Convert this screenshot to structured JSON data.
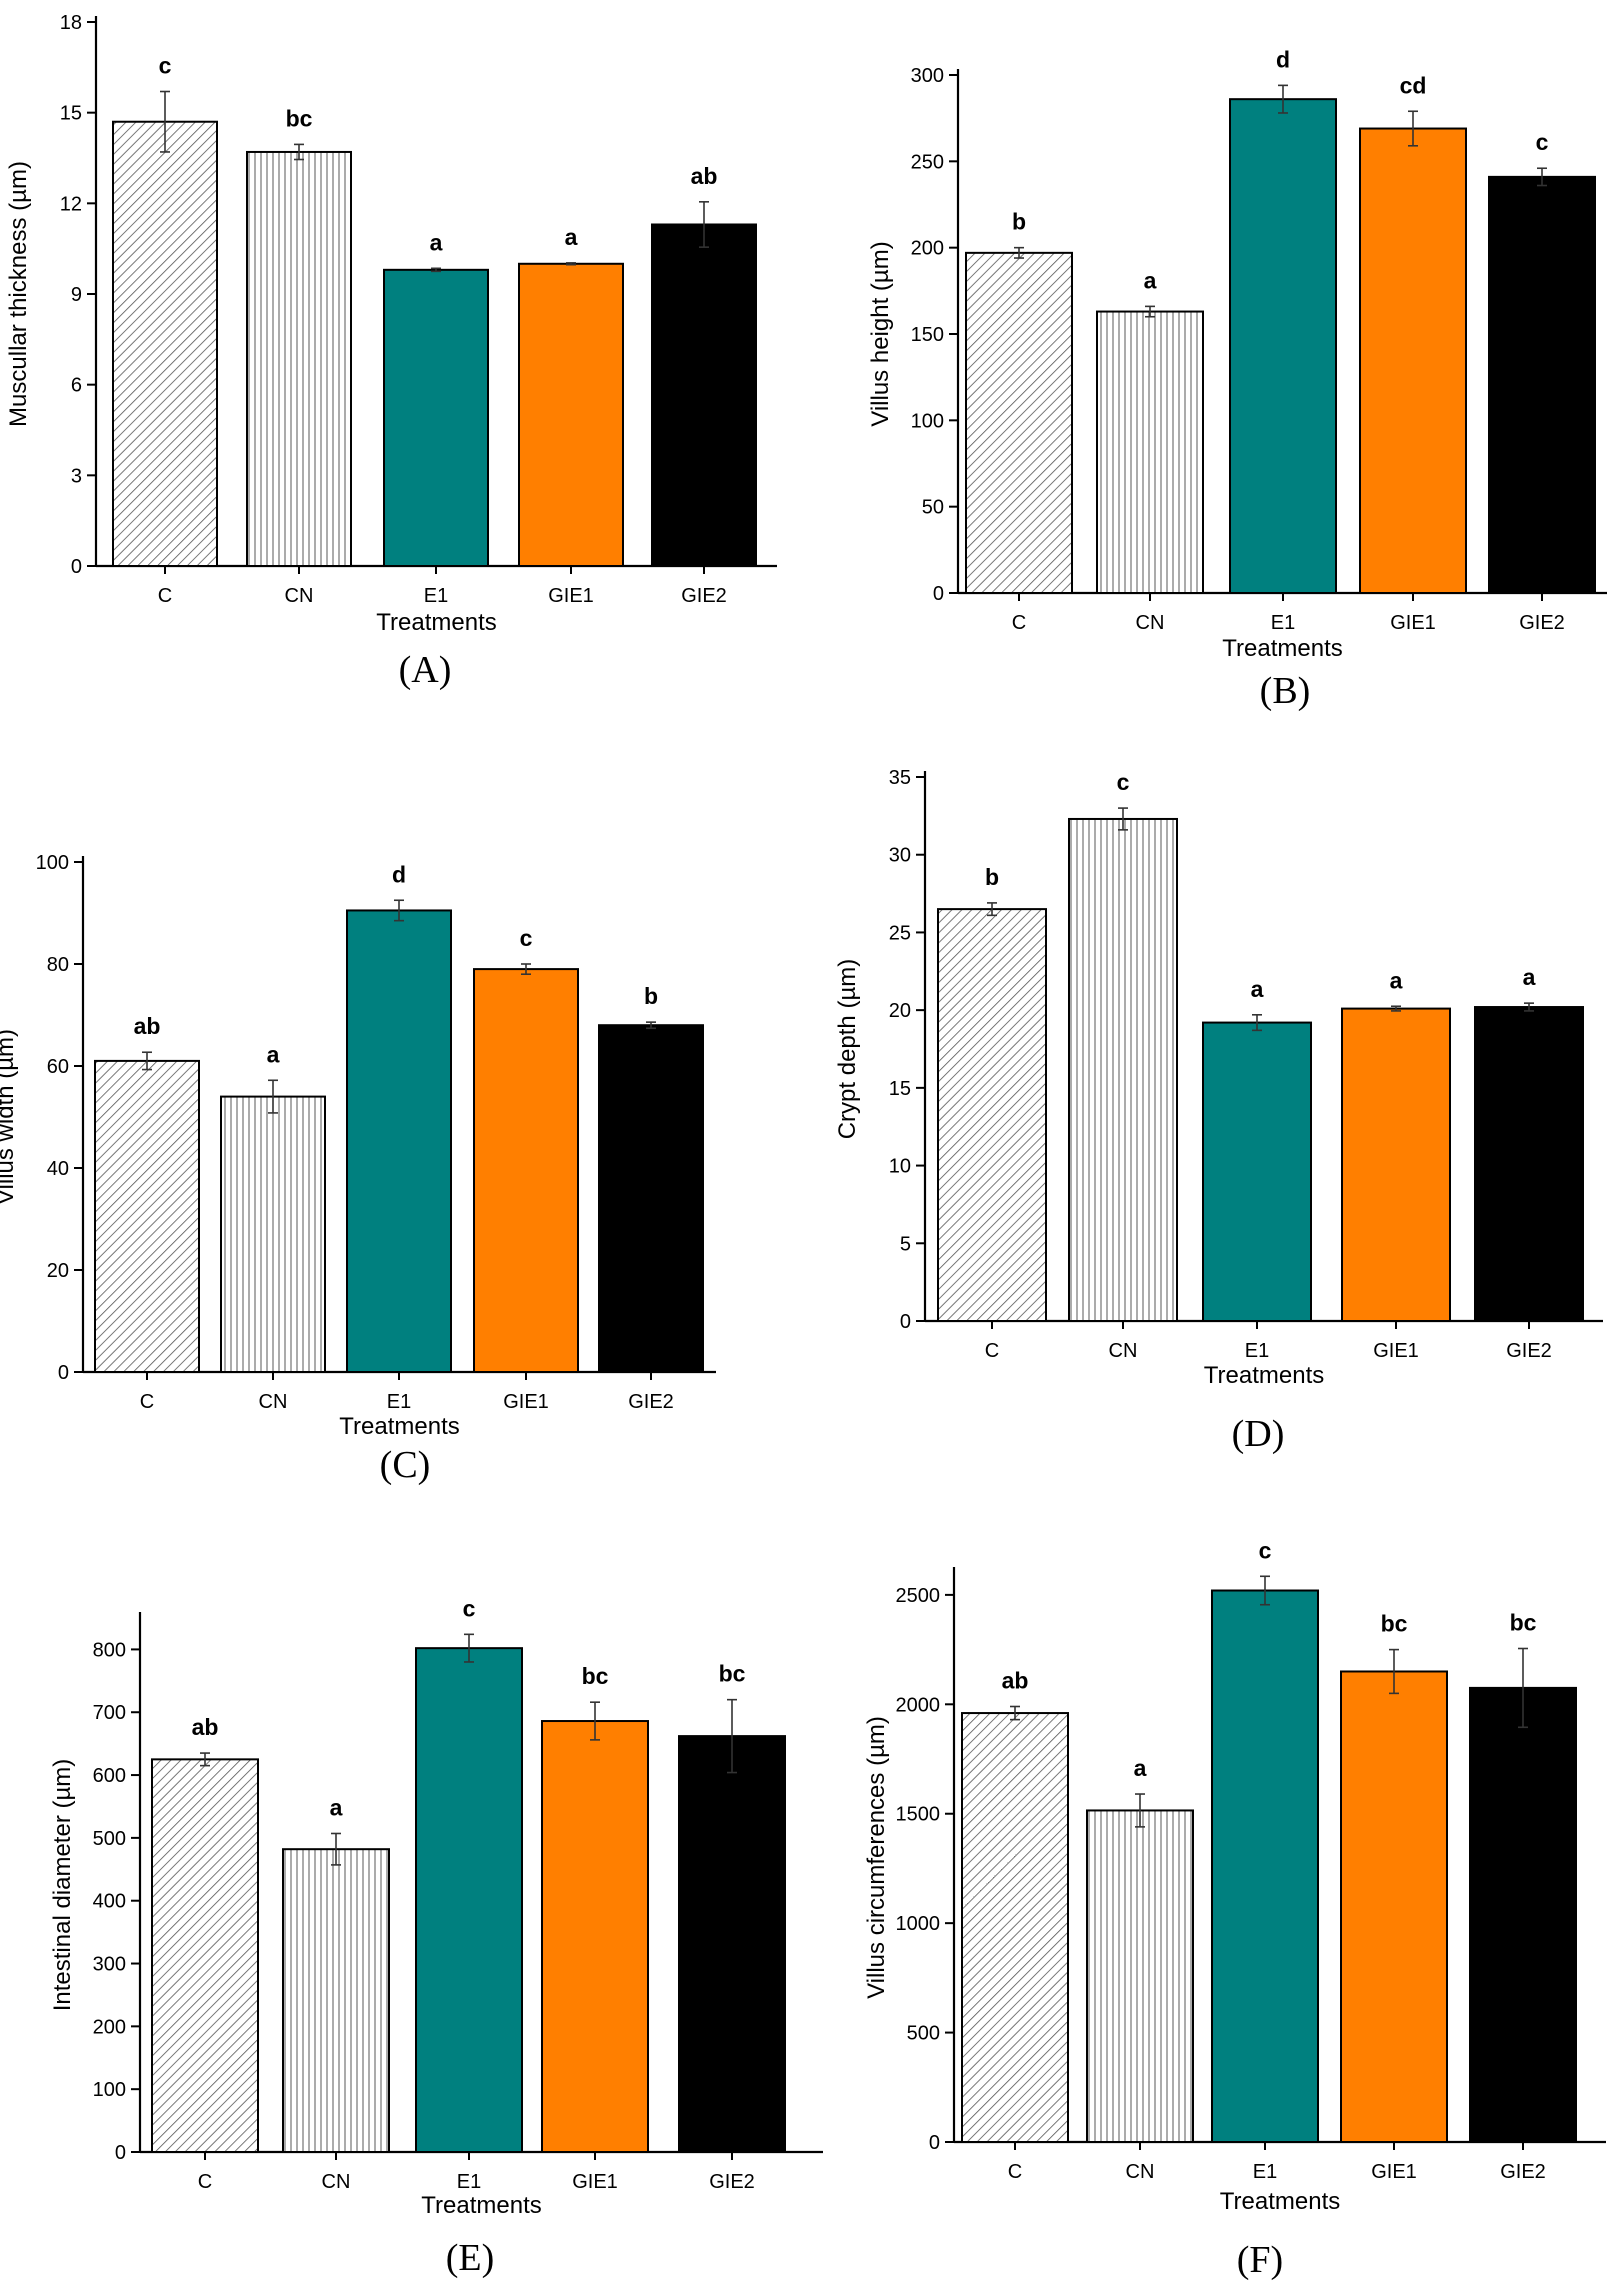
{
  "colors": {
    "E1": "#00807f",
    "GIE1": "#ff7f00",
    "GIE2": "#000000",
    "CN": "#ffffff",
    "C": "#ffffff",
    "pattern_stroke": "#555555"
  },
  "chart_data": [
    {
      "type": "bar",
      "panel": "(A)",
      "xlabel": "Treatments",
      "ylabel": "Muscullar thickness (µm)",
      "ylim": [
        0,
        18
      ],
      "yticks": [
        0,
        3,
        6,
        9,
        12,
        15,
        18
      ],
      "categories": [
        "C",
        "CN",
        "E1",
        "GIE1",
        "GIE2"
      ],
      "values": [
        14.7,
        13.7,
        9.8,
        10.0,
        11.3
      ],
      "errors": [
        1.0,
        0.25,
        0.05,
        0.03,
        0.75
      ],
      "letters": [
        "c",
        "bc",
        "a",
        "a",
        "ab"
      ]
    },
    {
      "type": "bar",
      "panel": "(B)",
      "xlabel": "Treatments",
      "ylabel": "Villus height (µm)",
      "ylim": [
        0,
        300
      ],
      "yticks": [
        0,
        50,
        100,
        150,
        200,
        250,
        300
      ],
      "categories": [
        "C",
        "CN",
        "E1",
        "GIE1",
        "GIE2"
      ],
      "values": [
        197,
        163,
        286,
        269,
        241
      ],
      "errors": [
        3,
        3,
        8,
        10,
        5
      ],
      "letters": [
        "b",
        "a",
        "d",
        "cd",
        "c"
      ]
    },
    {
      "type": "bar",
      "panel": "(C)",
      "xlabel": "Treatments",
      "ylabel": "Villus width (µm)",
      "ylim": [
        0,
        100
      ],
      "yticks": [
        0,
        20,
        40,
        60,
        80,
        100
      ],
      "categories": [
        "C",
        "CN",
        "E1",
        "GIE1",
        "GIE2"
      ],
      "values": [
        61,
        54,
        90.5,
        79,
        68
      ],
      "errors": [
        1.7,
        3.2,
        2.0,
        1.0,
        0.6
      ],
      "letters": [
        "ab",
        "a",
        "d",
        "c",
        "b"
      ]
    },
    {
      "type": "bar",
      "panel": "(D)",
      "xlabel": "Treatments",
      "ylabel": "Crypt depth (µm)",
      "ylim": [
        0,
        35
      ],
      "yticks": [
        0,
        5,
        10,
        15,
        20,
        25,
        30,
        35
      ],
      "categories": [
        "C",
        "CN",
        "E1",
        "GIE1",
        "GIE2"
      ],
      "values": [
        26.5,
        32.3,
        19.2,
        20.1,
        20.2
      ],
      "errors": [
        0.4,
        0.7,
        0.5,
        0.15,
        0.25
      ],
      "letters": [
        "b",
        "c",
        "a",
        "a",
        "a"
      ]
    },
    {
      "type": "bar",
      "panel": "(E)",
      "xlabel": "Treatments",
      "ylabel": "Intestinal diameter (µm)",
      "ylim": [
        0,
        850
      ],
      "yticks": [
        0,
        100,
        200,
        300,
        400,
        500,
        600,
        700,
        800
      ],
      "categories": [
        "C",
        "CN",
        "E1",
        "GIE1",
        "GIE2"
      ],
      "values": [
        625,
        482,
        802,
        686,
        662
      ],
      "errors": [
        10,
        25,
        22,
        30,
        58
      ],
      "letters": [
        "ab",
        "a",
        "c",
        "bc",
        "bc"
      ]
    },
    {
      "type": "bar",
      "panel": "(F)",
      "xlabel": "Treatments",
      "ylabel": "Villus circumferences (µm)",
      "ylim": [
        0,
        2600
      ],
      "yticks": [
        0,
        500,
        1000,
        1500,
        2000,
        2500
      ],
      "categories": [
        "C",
        "CN",
        "E1",
        "GIE1",
        "GIE2"
      ],
      "values": [
        1960,
        1515,
        2520,
        2150,
        2075
      ],
      "errors": [
        30,
        75,
        65,
        100,
        180
      ],
      "letters": [
        "ab",
        "a",
        "c",
        "bc",
        "bc"
      ]
    }
  ]
}
